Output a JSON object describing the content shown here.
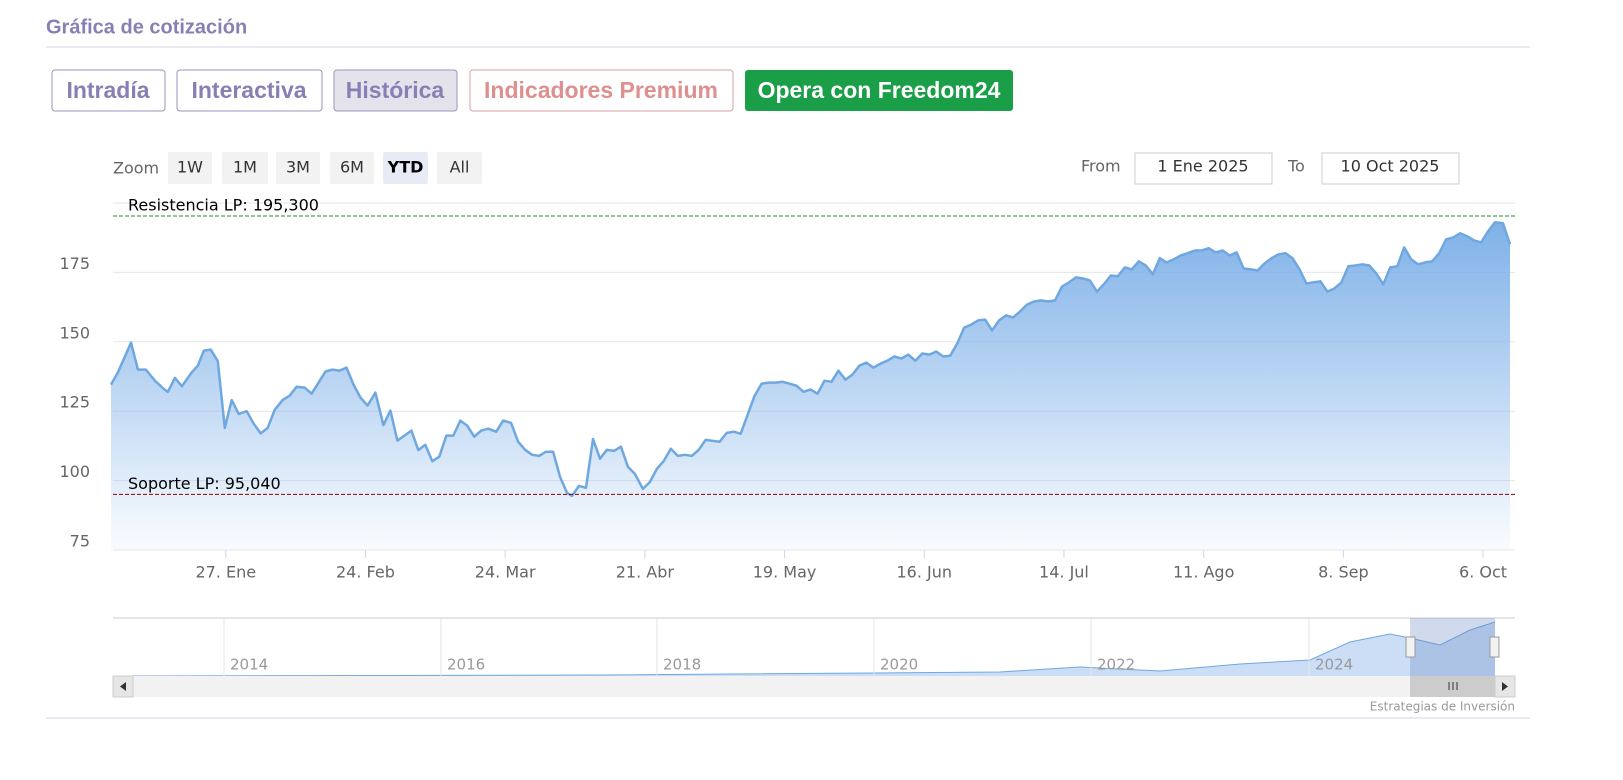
{
  "header": {
    "title": "Gráfica de cotización"
  },
  "tabs": [
    "Intradía",
    "Interactiva",
    "Histórica",
    "Indicadores Premium",
    "Opera con Freedom24"
  ],
  "zoom": {
    "label": "Zoom",
    "buttons": [
      "1W",
      "1M",
      "3M",
      "6M",
      "YTD",
      "All"
    ],
    "selected": "YTD"
  },
  "range": {
    "from_label": "From",
    "from": "1 Ene 2025",
    "to_label": "To",
    "to": "10 Oct 2025"
  },
  "navigator": {
    "labels": [
      "2014",
      "2016",
      "2018",
      "2020",
      "2022",
      "2024"
    ]
  },
  "credits": "Estrategias de Inversión",
  "chart_data": {
    "type": "area",
    "color": "#6fa8e0",
    "x": [
      3,
      4.4,
      7,
      8.4,
      10,
      11.8,
      13.6,
      14.4,
      15.8,
      17.2,
      19.2,
      20.4,
      21.6,
      23,
      24.4,
      25.8,
      27.2,
      28.6,
      30.2,
      31.6,
      33,
      34.4,
      35.8,
      37.4,
      38.8,
      40.2,
      41.8,
      43.2,
      44.6,
      46,
      47.4,
      48.8,
      50.2,
      51.6,
      53,
      54.4,
      56,
      57.6,
      59,
      60.4,
      61.8,
      63.2,
      64.6,
      66,
      67.4,
      68.8,
      70.2,
      71.6,
      73,
      74.4,
      75.8,
      77.2,
      78.6,
      80.2,
      81.6,
      83.2,
      84.6,
      86,
      87.4,
      88.8,
      90.2,
      91.6,
      93,
      94.4,
      95.4,
      96.8,
      98.2,
      99.6,
      101,
      102.4,
      103.8,
      105.2,
      106.6,
      108,
      109.6,
      111,
      112.4,
      113.8,
      115.2,
      116.6,
      118,
      119.4,
      120.8,
      122.2,
      123.6,
      125,
      126.4,
      127.8,
      129.2,
      130.6,
      132,
      133.4,
      134.8,
      136.2,
      137.6,
      139,
      140.4,
      141.8,
      143.2,
      144.6,
      146,
      147.4,
      148.8,
      150.2,
      151.6,
      153,
      154.4,
      155.8,
      157.2,
      158.6,
      160,
      161.4,
      162.8,
      164.2,
      165.6,
      167,
      168.4,
      169.8,
      171.2,
      172.6,
      174,
      175.4,
      176.8,
      178.2,
      179.6,
      181,
      182.4,
      183.8,
      185.2,
      186.6,
      188,
      189.4,
      190.8,
      192.2,
      193.6,
      195,
      196.4,
      197.8,
      199.2,
      200.6,
      202,
      203.4,
      204.8,
      206.2,
      207.6,
      209,
      210.4,
      211.8,
      213.2,
      214.6,
      216,
      217.4,
      218.8,
      220.2,
      221.6,
      223,
      224.4,
      225.8,
      227.2,
      228.6,
      230,
      231.4,
      232.8,
      234.2,
      235.6,
      237,
      238.4,
      239.8,
      241.2,
      242.6,
      244,
      245.4,
      246.8,
      248.2,
      249.6,
      251,
      252.4,
      253.8,
      255.2,
      256.6,
      258,
      259.4,
      260.8,
      262.2,
      263.6,
      265,
      266.4,
      267.8,
      269.2,
      270.6,
      272,
      273.4,
      274.8,
      276.2,
      277.6,
      279,
      280.4,
      282,
      283.4
    ],
    "values": [
      134.6,
      139,
      149.7,
      140,
      140,
      136,
      133,
      132,
      137,
      134,
      139,
      141.4,
      146.8,
      147.2,
      143,
      119,
      129,
      124,
      125,
      120.5,
      117,
      119,
      125.5,
      129,
      130.6,
      133.8,
      133.5,
      131.3,
      135.3,
      139.3,
      140,
      139.6,
      140.7,
      134.6,
      129.9,
      127,
      131.7,
      120,
      125.2,
      114.4,
      116.2,
      118,
      111,
      112.9,
      107,
      108.6,
      116.2,
      116.2,
      121.6,
      119.8,
      115.8,
      118,
      118.7,
      117.6,
      121.6,
      120.8,
      114,
      111.1,
      109.3,
      108.9,
      110.4,
      110.4,
      101.4,
      95.6,
      94.5,
      98.1,
      97.4,
      115,
      107.9,
      111.1,
      110.7,
      112.2,
      105,
      102.4,
      97,
      99.5,
      104.2,
      107.1,
      111.5,
      108.9,
      109.3,
      108.9,
      111.1,
      114.7,
      114.3,
      114,
      117.2,
      117.6,
      116.9,
      123.7,
      130.6,
      134.9,
      135.3,
      135.3,
      135.6,
      134.9,
      134.2,
      132,
      132.8,
      131.3,
      136,
      135.6,
      139.6,
      136.4,
      138.2,
      141.4,
      142.5,
      140.7,
      142.1,
      143.2,
      144.7,
      144,
      145.4,
      143.2,
      145.8,
      145.4,
      146.5,
      144.7,
      145,
      149.4,
      155.1,
      156.2,
      157.7,
      158,
      154.1,
      157.7,
      159.5,
      158.8,
      160.9,
      163.4,
      164.5,
      164.9,
      164.5,
      164.9,
      169.9,
      171.4,
      173.2,
      172.8,
      172.1,
      168.1,
      170.7,
      173.9,
      173.6,
      176.8,
      176.1,
      179,
      177.5,
      174.3,
      180.1,
      178.6,
      179.7,
      181.1,
      181.9,
      182.9,
      182.9,
      183.7,
      182.2,
      182.9,
      181.1,
      182.2,
      176.4,
      176.1,
      175.7,
      178.2,
      180.1,
      181.5,
      181.9,
      180.1,
      176.1,
      171,
      171.4,
      171.8,
      168.1,
      169.2,
      171.4,
      177.2,
      177.5,
      177.9,
      177.5,
      174.6,
      170.7,
      176.8,
      177.2,
      184,
      179.7,
      177.9,
      178.6,
      179,
      181.9,
      186.9,
      187.6,
      189.1,
      188,
      186.5,
      185.8,
      189.8,
      193.1,
      192.7,
      185.1
    ],
    "xlim": [
      3.4,
      284.4
    ],
    "xticks": [
      {
        "value": 26,
        "label": "27. Ene"
      },
      {
        "value": 54,
        "label": "24. Feb"
      },
      {
        "value": 82,
        "label": "24. Mar"
      },
      {
        "value": 110,
        "label": "21. Abr"
      },
      {
        "value": 138,
        "label": "19. May"
      },
      {
        "value": 166,
        "label": "16. Jun"
      },
      {
        "value": 194,
        "label": "14. Jul"
      },
      {
        "value": 222,
        "label": "11. Ago"
      },
      {
        "value": 250,
        "label": "8. Sep"
      },
      {
        "value": 278,
        "label": "6. Oct"
      }
    ],
    "ylim": [
      75,
      200
    ],
    "yticks": [
      75,
      100,
      125,
      150,
      175
    ],
    "grid": true,
    "reference_lines": [
      {
        "value": 195.3,
        "label": "Resistencia LP: 195,300",
        "color": "#2a8a2a"
      },
      {
        "value": 95.04,
        "label": "Soporte LP: 95,040",
        "color": "#8b0000"
      }
    ]
  }
}
